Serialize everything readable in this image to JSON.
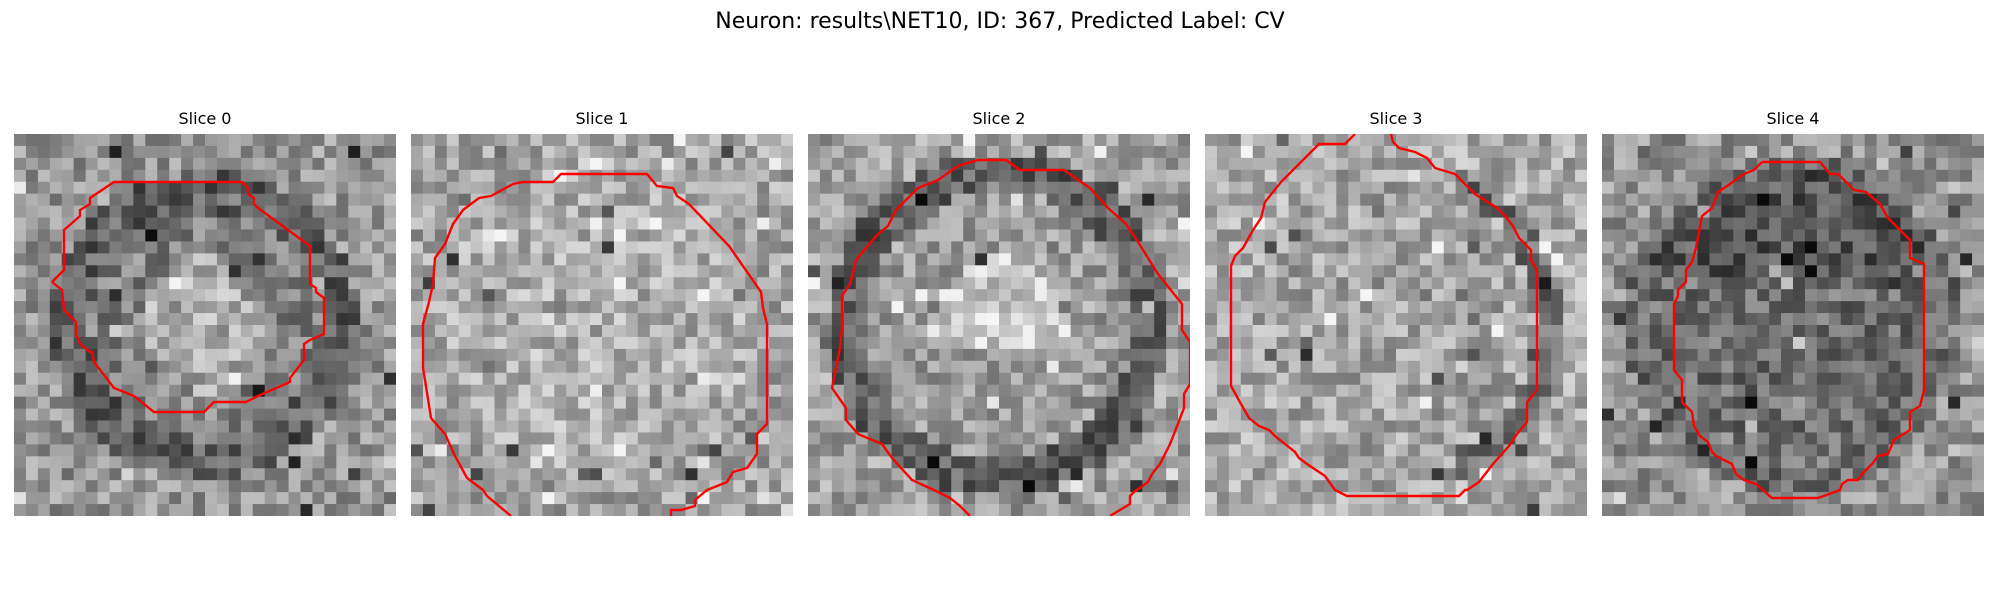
{
  "figure": {
    "title": "Neuron: results\\NET10, ID: 367, Predicted Label: CV"
  },
  "colors": {
    "contour": "#ff0000",
    "background": "#ffffff"
  },
  "panels": [
    {
      "title": "Slice 0",
      "seed": 11,
      "interior": "darkring"
    },
    {
      "title": "Slice 1",
      "seed": 23,
      "interior": "light"
    },
    {
      "title": "Slice 2",
      "seed": 37,
      "interior": "brightcenter"
    },
    {
      "title": "Slice 3",
      "seed": 41,
      "interior": "flatlight"
    },
    {
      "title": "Slice 4",
      "seed": 59,
      "interior": "dark"
    }
  ]
}
